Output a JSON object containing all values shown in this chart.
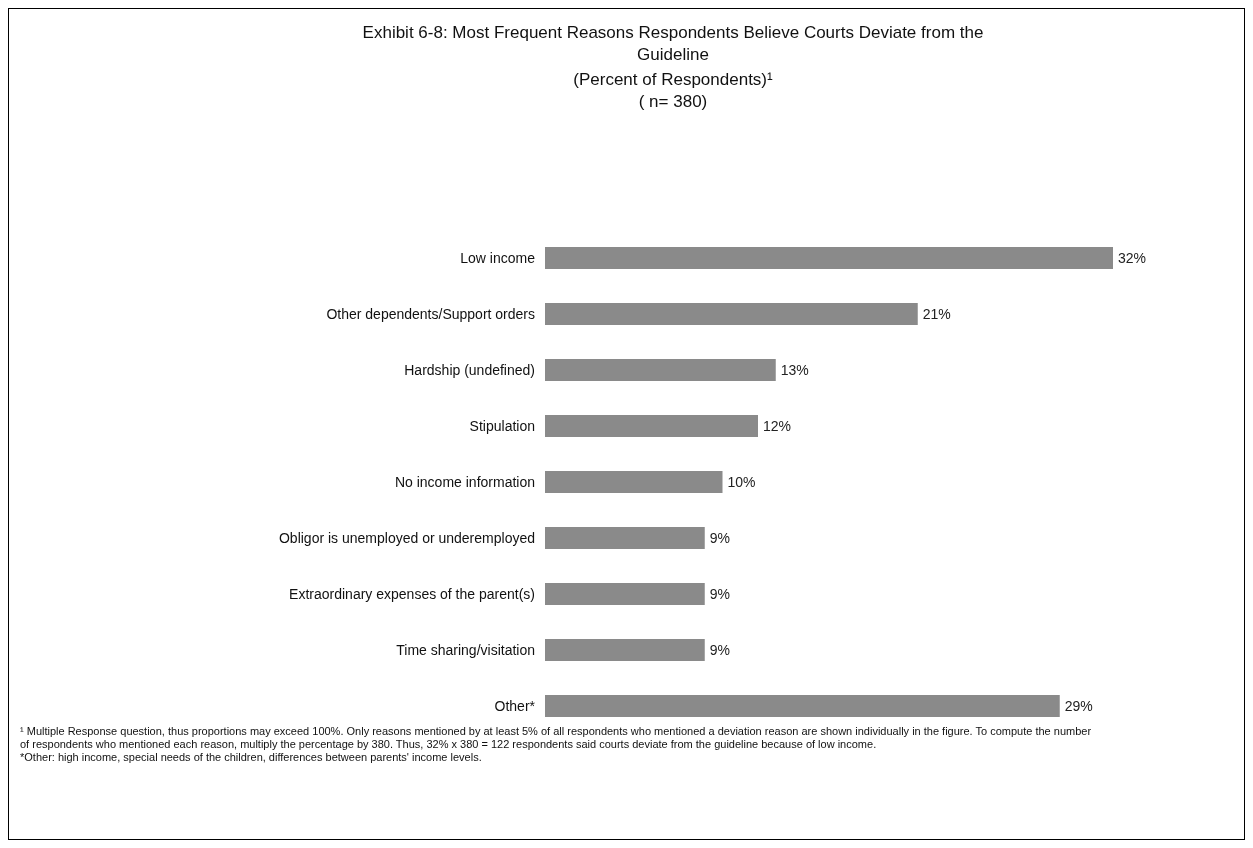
{
  "chart_data": {
    "type": "bar",
    "orientation": "horizontal",
    "title": "Exhibit 6-8: Most Frequent Reasons Respondents Believe Courts Deviate from the Guideline",
    "subtitle": "(Percent of Respondents)¹\n( n= 380)",
    "categories": [
      "Low income",
      "Other dependents/Support orders",
      "Hardship (undefined)",
      "Stipulation",
      "No income information",
      "Obligor is unemployed or underemployed",
      "Extraordinary expenses of the parent(s)",
      "Time sharing/visitation",
      "Other*"
    ],
    "values": [
      32,
      21,
      13,
      12,
      10,
      9,
      9,
      9,
      29
    ],
    "value_labels": [
      "32%",
      "21%",
      "13%",
      "12%",
      "10%",
      "9%",
      "9%",
      "9%",
      "29%"
    ],
    "color": "#8a8a8a",
    "annotations": [
      "¹ Multiple Response question, thus proportions may exceed 100%.  Only reasons mentioned by at least 5% of all respondents who mentioned a deviation reason are shown individually in the figure.  To compute the number of respondents who mentioned each reason, multiply the percentage by 380.  Thus, 32% x 380 = 122 respondents said courts deviate from the guideline because of low income.",
      "*Other: high income, special needs of the children, differences between parents' income levels."
    ]
  }
}
